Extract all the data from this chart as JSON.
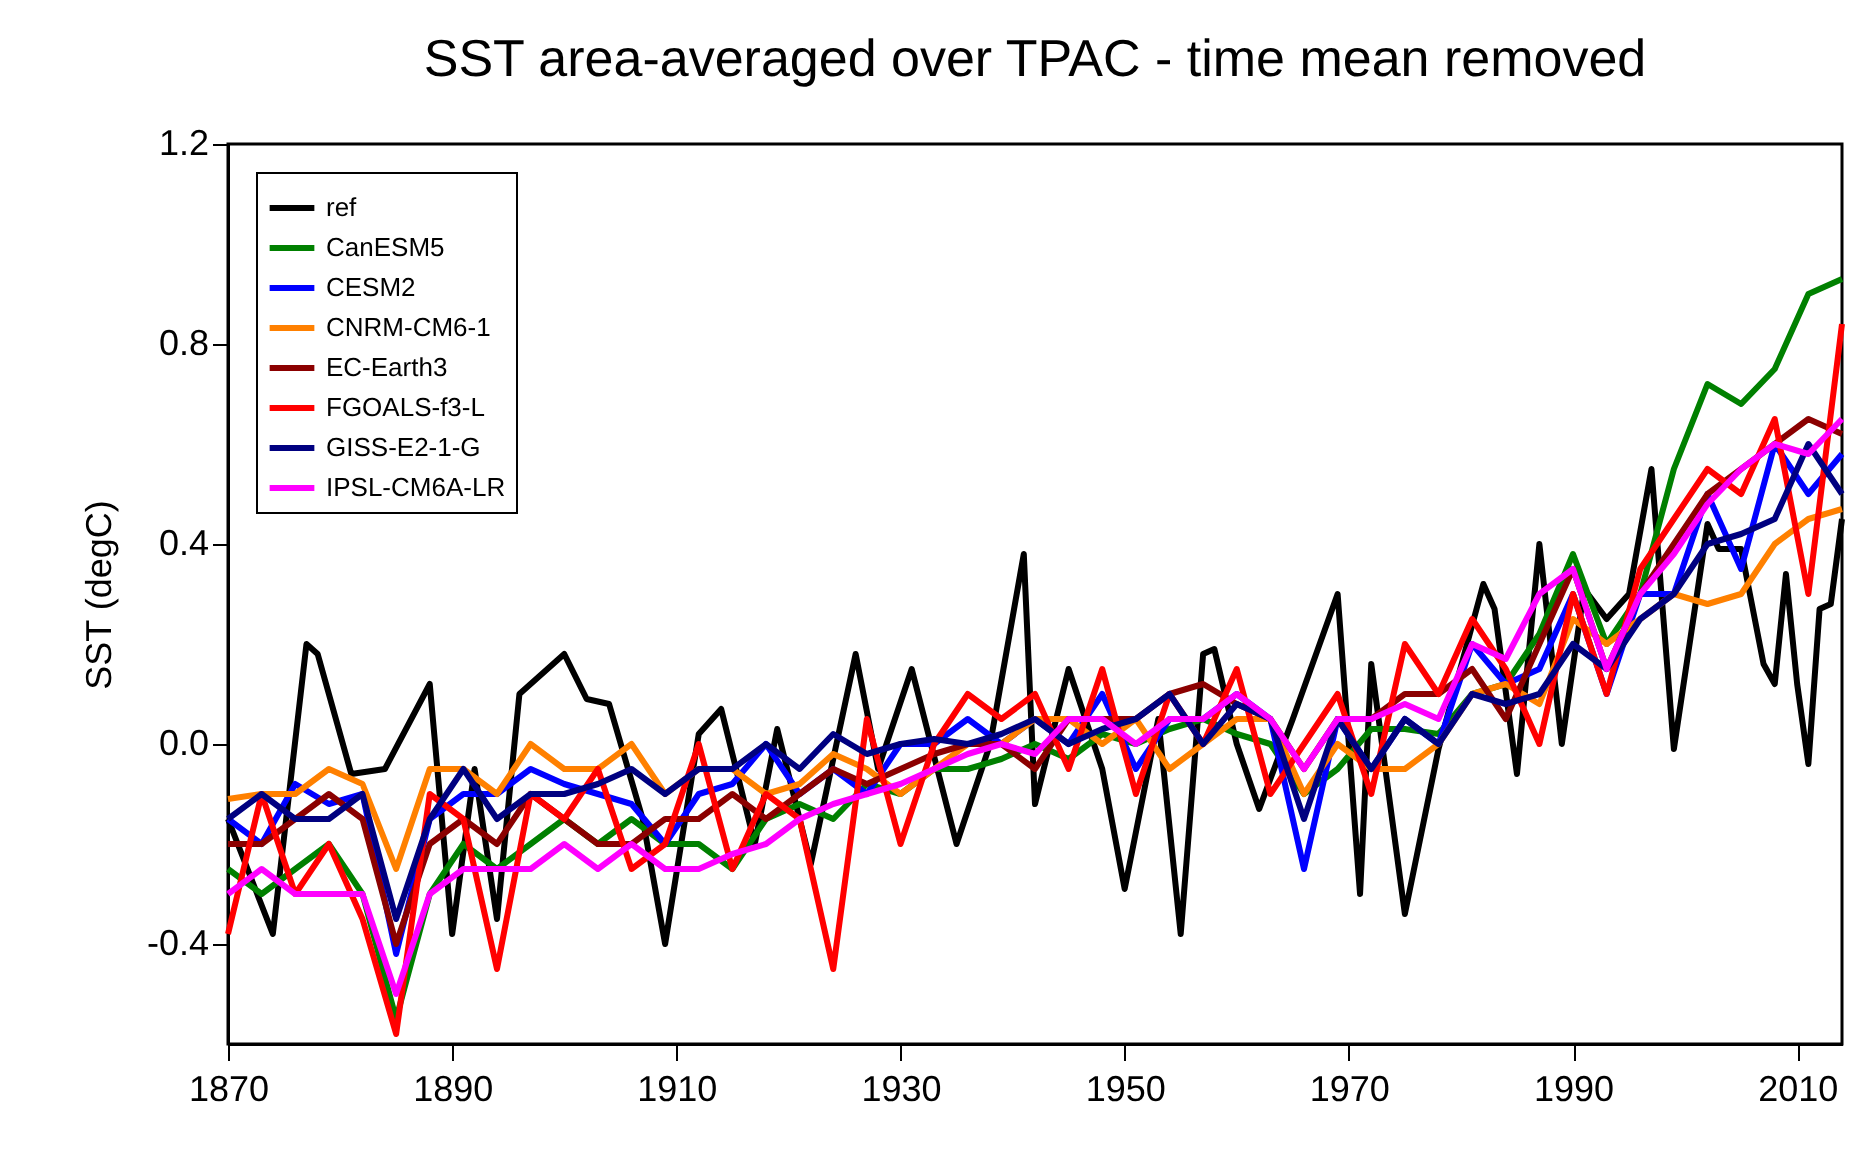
{
  "chart_data": {
    "type": "line",
    "title": "SST area-averaged over TPAC - time mean removed",
    "ylabel": "SST (degC)",
    "x": [
      1870,
      1873,
      1876,
      1879,
      1882,
      1885,
      1888,
      1891,
      1894,
      1897,
      1900,
      1903,
      1906,
      1909,
      1912,
      1915,
      1918,
      1921,
      1924,
      1927,
      1930,
      1933,
      1936,
      1939,
      1942,
      1945,
      1948,
      1951,
      1954,
      1957,
      1960,
      1963,
      1966,
      1969,
      1972,
      1975,
      1978,
      1981,
      1984,
      1987,
      1990,
      1993,
      1996,
      1999,
      2002,
      2005,
      2008,
      2011,
      2014
    ],
    "xlim": [
      1870,
      2014
    ],
    "xticks": [
      1870,
      1890,
      1910,
      1930,
      1950,
      1970,
      1990,
      2010
    ],
    "ylim": [
      -0.6,
      1.2
    ],
    "yticks": [
      {
        "value": -0.4,
        "label": "-0.4"
      },
      {
        "value": 0,
        "label": "0.0"
      },
      {
        "value": 0.4,
        "label": "0.4"
      },
      {
        "value": 0.8,
        "label": "0.8"
      },
      {
        "value": 1.2,
        "label": "1.2"
      }
    ],
    "legend": "top left",
    "grid": false,
    "line_style": "solid",
    "marker": "none",
    "series": [
      {
        "name": "ref",
        "color": "#000000",
        "x": [
          1870,
          1874,
          1877,
          1878,
          1881,
          1884,
          1888,
          1890,
          1892,
          1894,
          1896,
          1900,
          1902,
          1904,
          1907,
          1909,
          1912,
          1914,
          1917,
          1919,
          1922,
          1926,
          1928,
          1931,
          1935,
          1938,
          1941,
          1942,
          1945,
          1948,
          1950,
          1953,
          1955,
          1957,
          1958,
          1960,
          1962,
          1965,
          1969,
          1971,
          1972,
          1975,
          1978,
          1982,
          1983,
          1985,
          1987,
          1989,
          1991,
          1993,
          1995,
          1997,
          1999,
          2002,
          2003,
          2005,
          2007,
          2008,
          2009,
          2010,
          2011,
          2012,
          2013,
          2014
        ],
        "values": [
          -0.15,
          -0.38,
          0.2,
          0.18,
          -0.06,
          -0.05,
          0.12,
          -0.38,
          -0.05,
          -0.35,
          0.1,
          0.18,
          0.09,
          0.08,
          -0.15,
          -0.4,
          0.02,
          0.07,
          -0.2,
          0.03,
          -0.24,
          0.18,
          -0.05,
          0.15,
          -0.2,
          0.0,
          0.38,
          -0.12,
          0.15,
          -0.05,
          -0.29,
          0.05,
          -0.38,
          0.18,
          0.19,
          0.0,
          -0.13,
          0.05,
          0.3,
          -0.3,
          0.16,
          -0.34,
          -0.01,
          0.32,
          0.27,
          -0.06,
          0.4,
          0.0,
          0.31,
          0.25,
          0.3,
          0.55,
          -0.01,
          0.44,
          0.39,
          0.39,
          0.16,
          0.12,
          0.34,
          0.12,
          -0.04,
          0.27,
          0.28,
          0.45
        ]
      },
      {
        "name": "CanESM5",
        "color": "#008000",
        "values": [
          -0.25,
          -0.3,
          -0.25,
          -0.2,
          -0.3,
          -0.55,
          -0.3,
          -0.2,
          -0.25,
          -0.2,
          -0.15,
          -0.2,
          -0.15,
          -0.2,
          -0.2,
          -0.25,
          -0.15,
          -0.12,
          -0.15,
          -0.08,
          -0.1,
          -0.05,
          -0.05,
          -0.03,
          0.0,
          -0.03,
          0.02,
          0.0,
          0.03,
          0.05,
          0.02,
          0.0,
          -0.1,
          -0.05,
          0.03,
          0.03,
          0.02,
          0.1,
          0.12,
          0.22,
          0.38,
          0.2,
          0.3,
          0.55,
          0.72,
          0.68,
          0.75,
          0.9,
          0.93
        ]
      },
      {
        "name": "CESM2",
        "color": "#0000ff",
        "values": [
          -0.15,
          -0.2,
          -0.08,
          -0.12,
          -0.1,
          -0.42,
          -0.15,
          -0.1,
          -0.1,
          -0.05,
          -0.08,
          -0.1,
          -0.12,
          -0.2,
          -0.1,
          -0.08,
          0.0,
          -0.1,
          -0.05,
          -0.1,
          0.0,
          0.0,
          0.05,
          0.0,
          0.05,
          0.0,
          0.1,
          -0.05,
          0.05,
          0.05,
          0.1,
          0.05,
          -0.25,
          0.05,
          -0.05,
          0.05,
          0.0,
          0.2,
          0.12,
          0.15,
          0.3,
          0.1,
          0.3,
          0.3,
          0.5,
          0.35,
          0.6,
          0.5,
          0.58
        ]
      },
      {
        "name": "CNRM-CM6-1",
        "color": "#ff8000",
        "values": [
          -0.11,
          -0.1,
          -0.1,
          -0.05,
          -0.08,
          -0.25,
          -0.05,
          -0.05,
          -0.1,
          0.0,
          -0.05,
          -0.05,
          0.0,
          -0.1,
          -0.05,
          -0.05,
          -0.1,
          -0.08,
          -0.02,
          -0.05,
          -0.1,
          -0.05,
          0.0,
          0.0,
          0.05,
          0.05,
          0.0,
          0.05,
          -0.05,
          0.0,
          0.05,
          0.05,
          -0.1,
          0.0,
          -0.05,
          -0.05,
          0.0,
          0.1,
          0.12,
          0.08,
          0.25,
          0.2,
          0.25,
          0.3,
          0.28,
          0.3,
          0.4,
          0.45,
          0.47
        ]
      },
      {
        "name": "EC-Earth3",
        "color": "#8b0000",
        "values": [
          -0.2,
          -0.2,
          -0.15,
          -0.1,
          -0.15,
          -0.4,
          -0.2,
          -0.15,
          -0.2,
          -0.1,
          -0.15,
          -0.2,
          -0.2,
          -0.15,
          -0.15,
          -0.1,
          -0.15,
          -0.1,
          -0.05,
          -0.08,
          -0.05,
          -0.02,
          0.0,
          0.0,
          -0.05,
          0.05,
          0.05,
          0.05,
          0.1,
          0.12,
          0.08,
          0.05,
          -0.05,
          0.05,
          0.05,
          0.1,
          0.1,
          0.15,
          0.05,
          0.2,
          0.35,
          0.15,
          0.3,
          0.4,
          0.5,
          0.55,
          0.6,
          0.65,
          0.62
        ]
      },
      {
        "name": "FGOALS-f3-L",
        "color": "#ff0000",
        "values": [
          -0.38,
          -0.1,
          -0.3,
          -0.2,
          -0.35,
          -0.58,
          -0.1,
          -0.15,
          -0.45,
          -0.1,
          -0.15,
          -0.05,
          -0.25,
          -0.2,
          0.0,
          -0.25,
          -0.1,
          -0.15,
          -0.45,
          0.05,
          -0.2,
          0.0,
          0.1,
          0.05,
          0.1,
          -0.05,
          0.15,
          -0.1,
          0.1,
          0.0,
          0.15,
          -0.1,
          0.0,
          0.1,
          -0.1,
          0.2,
          0.1,
          0.25,
          0.15,
          0.0,
          0.3,
          0.1,
          0.35,
          0.45,
          0.55,
          0.5,
          0.65,
          0.3,
          0.84
        ]
      },
      {
        "name": "GISS-E2-1-G",
        "color": "#000080",
        "values": [
          -0.15,
          -0.1,
          -0.15,
          -0.15,
          -0.1,
          -0.35,
          -0.15,
          -0.05,
          -0.15,
          -0.1,
          -0.1,
          -0.08,
          -0.05,
          -0.1,
          -0.05,
          -0.05,
          0.0,
          -0.05,
          0.02,
          -0.02,
          0.0,
          0.01,
          0.0,
          0.02,
          0.05,
          0.0,
          0.03,
          0.05,
          0.1,
          0.0,
          0.08,
          0.05,
          -0.15,
          0.05,
          -0.05,
          0.05,
          0.0,
          0.1,
          0.08,
          0.1,
          0.2,
          0.15,
          0.25,
          0.3,
          0.4,
          0.42,
          0.45,
          0.6,
          0.5
        ]
      },
      {
        "name": "IPSL-CM6A-LR",
        "color": "#ff00ff",
        "values": [
          -0.3,
          -0.25,
          -0.3,
          -0.3,
          -0.3,
          -0.5,
          -0.3,
          -0.25,
          -0.25,
          -0.25,
          -0.2,
          -0.25,
          -0.2,
          -0.25,
          -0.25,
          -0.22,
          -0.2,
          -0.15,
          -0.12,
          -0.1,
          -0.08,
          -0.05,
          -0.02,
          0.0,
          -0.02,
          0.05,
          0.05,
          0.0,
          0.05,
          0.05,
          0.1,
          0.05,
          -0.05,
          0.05,
          0.05,
          0.08,
          0.05,
          0.2,
          0.17,
          0.3,
          0.35,
          0.15,
          0.3,
          0.38,
          0.48,
          0.55,
          0.6,
          0.58,
          0.65
        ]
      }
    ]
  }
}
